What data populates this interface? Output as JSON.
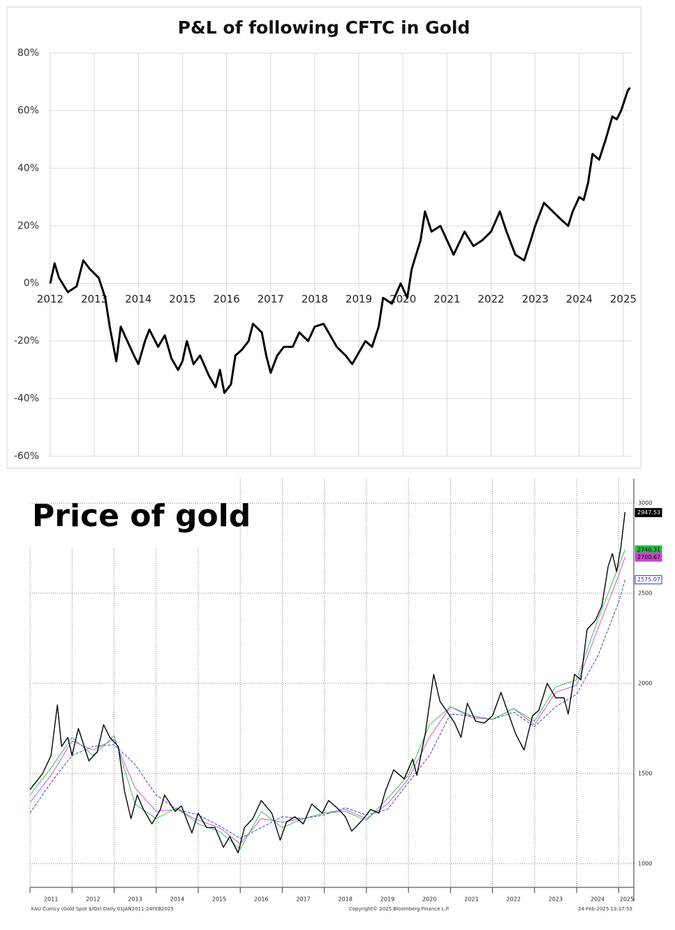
{
  "chart_data": [
    {
      "type": "line",
      "title": "P&L of following CFTC in Gold",
      "color": "#000000",
      "grid": true,
      "xlim": [
        2011.97,
        2025.19
      ],
      "xticks": [
        2012,
        2013,
        2014,
        2015,
        2016,
        2017,
        2018,
        2019,
        2020,
        2021,
        2022,
        2023,
        2024,
        2025
      ],
      "ylim": [
        -60,
        80
      ],
      "yticks": [
        {
          "value": -60,
          "label": "-60%"
        },
        {
          "value": -40,
          "label": "-40%"
        },
        {
          "value": -20,
          "label": "-20%"
        },
        {
          "value": 0,
          "label": "0%"
        },
        {
          "value": 20,
          "label": "20%"
        },
        {
          "value": 40,
          "label": "40%"
        },
        {
          "value": 60,
          "label": "60%"
        },
        {
          "value": 80,
          "label": "80%"
        }
      ],
      "x": [
        2012.0,
        2012.1,
        2012.2,
        2012.4,
        2012.6,
        2012.75,
        2012.9,
        2013.1,
        2013.25,
        2013.35,
        2013.5,
        2013.6,
        2013.75,
        2013.9,
        2014.0,
        2014.15,
        2014.25,
        2014.45,
        2014.6,
        2014.75,
        2014.9,
        2015.0,
        2015.1,
        2015.25,
        2015.4,
        2015.6,
        2015.75,
        2015.85,
        2015.95,
        2016.1,
        2016.2,
        2016.35,
        2016.5,
        2016.6,
        2016.8,
        2016.9,
        2017.0,
        2017.15,
        2017.3,
        2017.5,
        2017.65,
        2017.85,
        2018.0,
        2018.2,
        2018.35,
        2018.5,
        2018.7,
        2018.85,
        2019.0,
        2019.15,
        2019.3,
        2019.45,
        2019.55,
        2019.75,
        2019.95,
        2020.1,
        2020.2,
        2020.3,
        2020.4,
        2020.5,
        2020.65,
        2020.85,
        2021.0,
        2021.15,
        2021.4,
        2021.6,
        2021.8,
        2022.0,
        2022.2,
        2022.35,
        2022.55,
        2022.75,
        2022.9,
        2023.0,
        2023.2,
        2023.4,
        2023.6,
        2023.75,
        2023.85,
        2024.0,
        2024.1,
        2024.2,
        2024.3,
        2024.45,
        2024.6,
        2024.75,
        2024.85,
        2024.95,
        2025.1,
        2025.15
      ],
      "values": [
        0,
        7,
        2,
        -3,
        -1,
        8,
        5,
        2,
        -5,
        -15,
        -27,
        -15,
        -20,
        -25,
        -28,
        -20,
        -16,
        -22,
        -18,
        -26,
        -30,
        -27,
        -20,
        -28,
        -25,
        -32,
        -36,
        -30,
        -38,
        -35,
        -25,
        -23,
        -20,
        -14,
        -17,
        -25,
        -31,
        -25,
        -22,
        -22,
        -17,
        -20,
        -15,
        -14,
        -18,
        -22,
        -25,
        -28,
        -24,
        -20,
        -22,
        -15,
        -5,
        -7,
        0,
        -5,
        5,
        10,
        15,
        25,
        18,
        20,
        15,
        10,
        18,
        13,
        15,
        18,
        25,
        18,
        10,
        8,
        15,
        20,
        28,
        25,
        22,
        20,
        25,
        30,
        29,
        35,
        45,
        43,
        50,
        58,
        57,
        60,
        67,
        68
      ]
    },
    {
      "type": "line",
      "title": "Price of gold",
      "grid": true,
      "xlim": [
        2011.0,
        2025.36
      ],
      "xticks": [
        2011,
        2012,
        2013,
        2014,
        2015,
        2016,
        2017,
        2018,
        2019,
        2020,
        2021,
        2022,
        2023,
        2024,
        2025
      ],
      "ylim": [
        868,
        3136
      ],
      "yticks": [
        1000,
        1500,
        2000,
        2500,
        3000
      ],
      "x": [
        2011.0,
        2011.3,
        2011.5,
        2011.65,
        2011.75,
        2011.9,
        2012.0,
        2012.15,
        2012.4,
        2012.6,
        2012.75,
        2012.9,
        2013.1,
        2013.25,
        2013.4,
        2013.55,
        2013.7,
        2013.9,
        2014.1,
        2014.2,
        2014.45,
        2014.6,
        2014.85,
        2015.0,
        2015.2,
        2015.4,
        2015.6,
        2015.75,
        2015.95,
        2016.1,
        2016.3,
        2016.5,
        2016.75,
        2016.95,
        2017.1,
        2017.3,
        2017.5,
        2017.7,
        2017.95,
        2018.1,
        2018.3,
        2018.5,
        2018.65,
        2018.9,
        2019.1,
        2019.3,
        2019.45,
        2019.65,
        2019.9,
        2020.1,
        2020.2,
        2020.4,
        2020.6,
        2020.75,
        2020.9,
        2021.1,
        2021.25,
        2021.4,
        2021.6,
        2021.8,
        2022.0,
        2022.2,
        2022.35,
        2022.55,
        2022.75,
        2022.95,
        2023.1,
        2023.3,
        2023.5,
        2023.7,
        2023.8,
        2023.95,
        2024.1,
        2024.25,
        2024.45,
        2024.6,
        2024.75,
        2024.85,
        2024.95,
        2025.05,
        2025.15
      ],
      "series": [
        {
          "color": "#000000",
          "last_value": 2947.53,
          "values": [
            1410,
            1500,
            1600,
            1880,
            1650,
            1700,
            1600,
            1750,
            1570,
            1620,
            1770,
            1700,
            1650,
            1400,
            1250,
            1380,
            1300,
            1220,
            1300,
            1380,
            1290,
            1320,
            1170,
            1280,
            1200,
            1200,
            1090,
            1150,
            1060,
            1200,
            1250,
            1350,
            1280,
            1130,
            1230,
            1260,
            1220,
            1330,
            1280,
            1350,
            1310,
            1260,
            1180,
            1240,
            1300,
            1280,
            1400,
            1520,
            1470,
            1580,
            1490,
            1720,
            2050,
            1900,
            1850,
            1780,
            1700,
            1890,
            1790,
            1780,
            1820,
            1950,
            1850,
            1720,
            1630,
            1820,
            1850,
            2000,
            1920,
            1920,
            1830,
            2050,
            2020,
            2300,
            2350,
            2430,
            2650,
            2720,
            2620,
            2750,
            2950
          ]
        },
        {
          "color": "#22bb44",
          "last_value": 2740.31,
          "x": [
            2011.0,
            2011.5,
            2012.0,
            2012.5,
            2013.0,
            2013.5,
            2014.0,
            2014.5,
            2015.0,
            2015.5,
            2016.0,
            2016.5,
            2017.0,
            2017.5,
            2018.0,
            2018.5,
            2019.0,
            2019.5,
            2020.0,
            2020.5,
            2021.0,
            2021.5,
            2022.0,
            2022.5,
            2023.0,
            2023.5,
            2024.0,
            2024.5,
            2025.0,
            2025.15
          ],
          "values": [
            1380,
            1530,
            1700,
            1600,
            1710,
            1330,
            1250,
            1310,
            1220,
            1180,
            1080,
            1290,
            1200,
            1250,
            1280,
            1290,
            1240,
            1360,
            1490,
            1770,
            1870,
            1820,
            1800,
            1860,
            1790,
            1980,
            2020,
            2350,
            2650,
            2740.31
          ]
        },
        {
          "color": "#cc44cc",
          "last_value": 2700.67,
          "x": [
            2011.0,
            2011.5,
            2012.0,
            2012.5,
            2013.0,
            2013.5,
            2014.0,
            2014.5,
            2015.0,
            2015.5,
            2016.0,
            2016.5,
            2017.0,
            2017.5,
            2018.0,
            2018.5,
            2019.0,
            2019.5,
            2020.0,
            2020.5,
            2021.0,
            2021.5,
            2022.0,
            2022.5,
            2023.0,
            2023.5,
            2024.0,
            2024.5,
            2025.0,
            2025.15
          ],
          "values": [
            1340,
            1490,
            1680,
            1630,
            1690,
            1420,
            1290,
            1300,
            1240,
            1200,
            1110,
            1250,
            1230,
            1250,
            1280,
            1300,
            1250,
            1330,
            1470,
            1700,
            1870,
            1810,
            1800,
            1860,
            1770,
            1950,
            1990,
            2300,
            2600,
            2700.67
          ]
        },
        {
          "color": "#2233cc",
          "dash": true,
          "last_value": 2575.07,
          "x": [
            2011.0,
            2011.5,
            2012.0,
            2012.5,
            2013.0,
            2013.5,
            2014.0,
            2014.5,
            2015.0,
            2015.5,
            2016.0,
            2016.5,
            2017.0,
            2017.5,
            2018.0,
            2018.5,
            2019.0,
            2019.5,
            2020.0,
            2020.5,
            2021.0,
            2021.5,
            2022.0,
            2022.5,
            2023.0,
            2023.5,
            2024.0,
            2024.5,
            2025.0,
            2025.15
          ],
          "values": [
            1280,
            1450,
            1600,
            1650,
            1660,
            1550,
            1380,
            1300,
            1270,
            1210,
            1140,
            1200,
            1260,
            1250,
            1270,
            1310,
            1270,
            1300,
            1450,
            1600,
            1830,
            1820,
            1800,
            1840,
            1760,
            1870,
            1940,
            2150,
            2450,
            2575.07
          ]
        }
      ],
      "footer_left": "XAU Curncy (Gold Spot $/Oz) Daily 01JAN2011-24FEB2025",
      "footer_center": "Copyright© 2025 Bloomberg Finance L.P.",
      "footer_right": "24-Feb-2025 13:17:53"
    }
  ]
}
